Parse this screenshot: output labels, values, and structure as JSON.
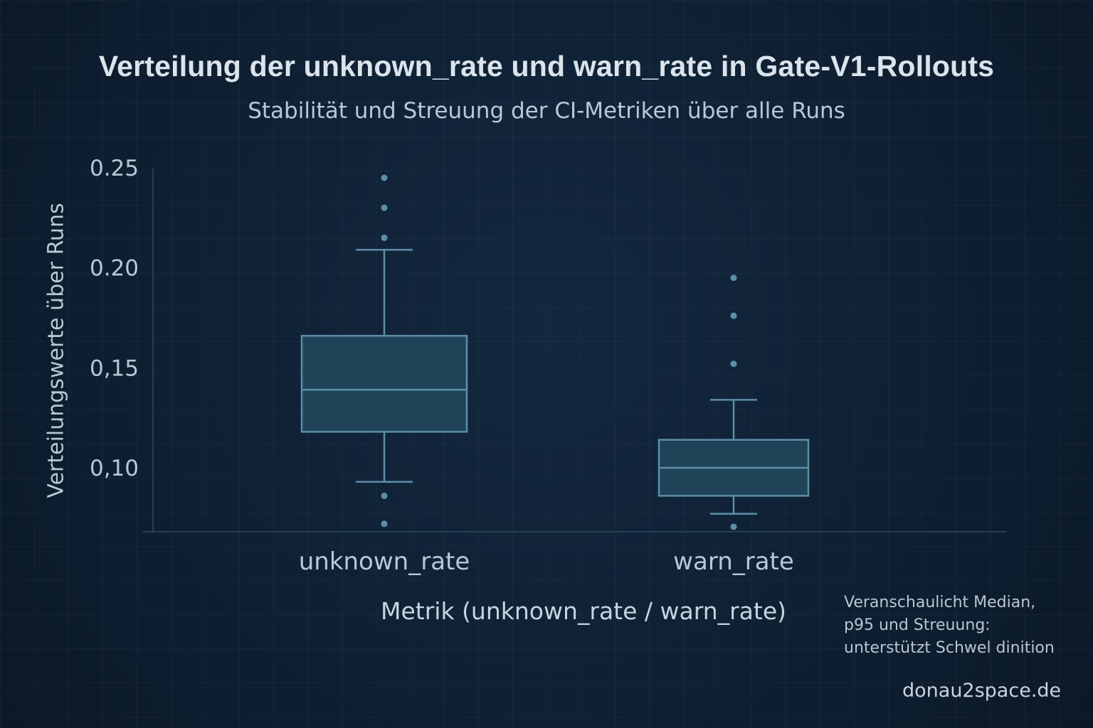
{
  "title": "Verteilung der unknown_rate und warn_rate in Gate-V1-Rollouts",
  "subtitle": "Stabilität und Streuung der CI-Metriken über alle Runs",
  "colors": {
    "background": "#0f1f31",
    "box_fill": "#1f4458",
    "box_stroke": "#5d8ea8",
    "axis": "#31495a",
    "text": "#b9c8d5"
  },
  "chart_data": {
    "type": "box",
    "title": "Verteilung der unknown_rate und warn_rate in Gate-V1-Rollouts",
    "subtitle": "Stabilität und Streuung der CI-Metriken über alle Runs",
    "xlabel": "Metrik (unknown_rate / warn_rate)",
    "ylabel": "Verteilungswerte über Runs",
    "ylim": [
      0.07,
      0.25
    ],
    "y_ticks": [
      {
        "value": 0.25,
        "label": "0.25"
      },
      {
        "value": 0.2,
        "label": "0.20"
      },
      {
        "value": 0.15,
        "label": "0,15"
      },
      {
        "value": 0.1,
        "label": "0,10"
      }
    ],
    "categories": [
      "unknown_rate",
      "warn_rate"
    ],
    "boxes": [
      {
        "name": "unknown_rate",
        "whisker_low": 0.093,
        "q1": 0.118,
        "median": 0.139,
        "q3": 0.166,
        "whisker_high": 0.209,
        "outliers": [
          0.245,
          0.23,
          0.215,
          0.086,
          0.072
        ]
      },
      {
        "name": "warn_rate",
        "whisker_low": 0.077,
        "q1": 0.086,
        "median": 0.1,
        "q3": 0.114,
        "whisker_high": 0.134,
        "outliers": [
          0.195,
          0.176,
          0.152,
          0.0705
        ]
      }
    ]
  },
  "note": {
    "lines": [
      "Veranschaulicht Median,",
      "p95 und Streuung:",
      "unterstützt Schwel dinition"
    ]
  },
  "brand": "donau2space.de"
}
